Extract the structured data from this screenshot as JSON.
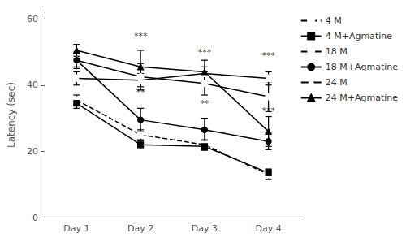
{
  "chart_data": {
    "type": "line",
    "categories": [
      "Day 1",
      "Day 2",
      "Day 3",
      "Day 4"
    ],
    "ylabel": "Latency (sec)",
    "ylim": [
      0,
      62
    ],
    "yticks": [
      0,
      20,
      40,
      60
    ],
    "grid": false,
    "legend": "right",
    "series": [
      {
        "name": "4 M",
        "color": "#000000",
        "marker": "square-open",
        "line_style": "dashed",
        "values": [
          35.5,
          25.0,
          22.0,
          13.0
        ],
        "errors": [
          1.5,
          1.5,
          1.5,
          1.5
        ]
      },
      {
        "name": "4 M+Agmatine",
        "color": "#000000",
        "marker": "square",
        "line_style": "solid",
        "values": [
          34.5,
          22.0,
          21.5,
          13.5
        ],
        "errors": [
          1.5,
          1.2,
          1.2,
          1.2
        ]
      },
      {
        "name": "18 M",
        "color": "#000000",
        "marker": "circle-open",
        "line_style": "solid",
        "values": [
          47.5,
          42.5,
          40.5,
          36.5
        ],
        "errors": [
          2.0,
          4.0,
          3.5,
          4.5
        ]
      },
      {
        "name": "18 M+Agmatine",
        "color": "#000000",
        "marker": "circle",
        "line_style": "solid",
        "values": [
          47.5,
          29.5,
          26.5,
          23.0
        ],
        "errors": [
          2.5,
          3.5,
          3.5,
          2.5
        ]
      },
      {
        "name": "24 M",
        "color": "#000000",
        "marker": "triangle-open",
        "line_style": "solid",
        "values": [
          42.0,
          41.5,
          43.5,
          42.0
        ],
        "errors": [
          2.0,
          2.0,
          2.0,
          2.0
        ]
      },
      {
        "name": "24 M+Agmatine",
        "color": "#000000",
        "marker": "triangle",
        "line_style": "solid",
        "values": [
          50.5,
          45.5,
          44.0,
          26.0
        ],
        "errors": [
          1.8,
          5.0,
          3.5,
          4.5
        ]
      }
    ],
    "annotations": [
      {
        "x": "Day 2",
        "y": 53.5,
        "text": "***"
      },
      {
        "x": "Day 2",
        "y": 36.5,
        "text": "**"
      },
      {
        "x": "Day 3",
        "y": 48.5,
        "text": "***"
      },
      {
        "x": "Day 3",
        "y": 33.0,
        "text": "**"
      },
      {
        "x": "Day 4",
        "y": 47.5,
        "text": "***"
      },
      {
        "x": "Day 4",
        "y": 31.0,
        "text": "***"
      }
    ]
  }
}
